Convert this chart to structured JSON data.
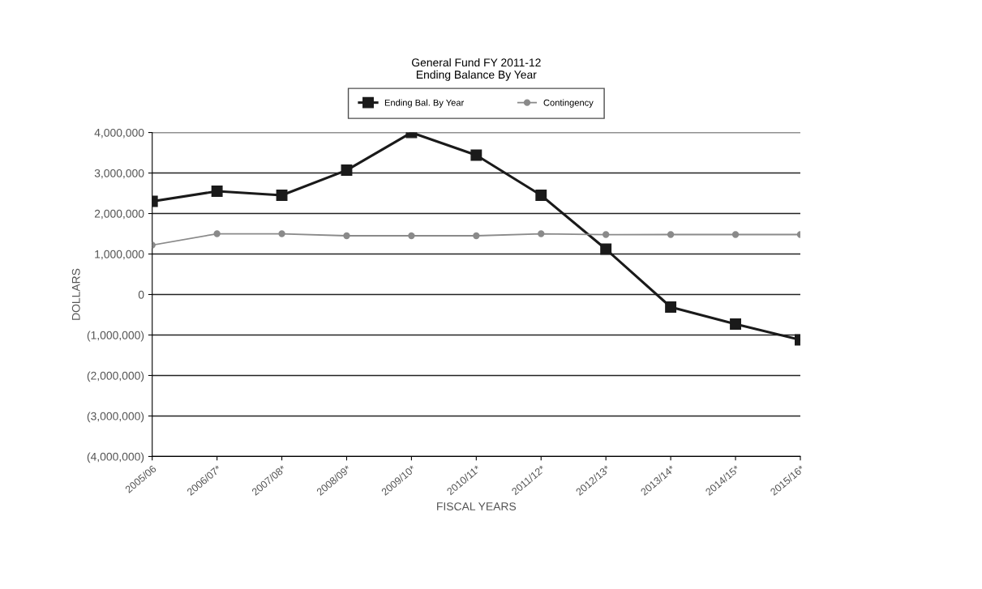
{
  "chart_data": {
    "type": "line",
    "title": "General Fund FY 2011-12\nEnding Balance By Year",
    "xlabel": "FISCAL YEARS",
    "ylabel": "DOLLARS",
    "categories": [
      "2005/06",
      "2006/07*",
      "2007/08*",
      "2008/09*",
      "2009/10*",
      "2010/11*",
      "2011/12*",
      "2012/13*",
      "2013/14*",
      "2014/15*",
      "2015/16*"
    ],
    "series": [
      {
        "name": "Ending Bal. By Year",
        "color": "#1a1a1a",
        "marker": "square",
        "values": [
          2300000,
          2550000,
          2450000,
          3070000,
          4000000,
          3440000,
          2450000,
          1120000,
          -310000,
          -730000,
          -1120000
        ]
      },
      {
        "name": "Contingency",
        "color": "#8a8a8a",
        "marker": "circle",
        "values": [
          1220000,
          1500000,
          1500000,
          1450000,
          1450000,
          1450000,
          1500000,
          1480000,
          1480000,
          1480000,
          1480000
        ]
      }
    ],
    "ylim": [
      -4000000,
      4000000
    ],
    "yticks": [
      {
        "value": -4000000,
        "label": "(4,000,000)"
      },
      {
        "value": -3000000,
        "label": "(3,000,000)"
      },
      {
        "value": -2000000,
        "label": "(2,000,000)"
      },
      {
        "value": -1000000,
        "label": "(1,000,000)"
      },
      {
        "value": 0,
        "label": "0"
      },
      {
        "value": 1000000,
        "label": "1,000,000"
      },
      {
        "value": 2000000,
        "label": "2,000,000"
      },
      {
        "value": 3000000,
        "label": "3,000,000"
      },
      {
        "value": 4000000,
        "label": "4,000,000"
      }
    ],
    "grid": "y",
    "legend": "top"
  }
}
